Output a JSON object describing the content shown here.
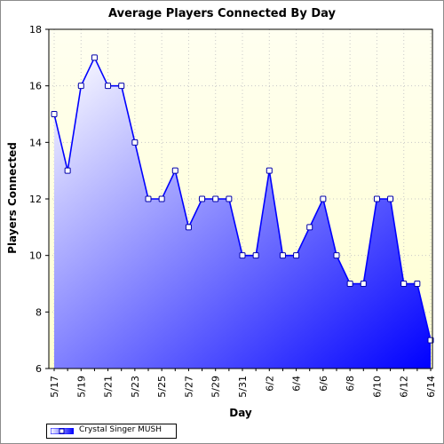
{
  "colors": {
    "plot_bg_top": "#fffff0",
    "plot_bg_bottom": "#ffffd0",
    "area_light": "#ffffff",
    "area_dark": "#0000ff",
    "line": "#0000ff",
    "grid": "#c8c8c8"
  },
  "chart_data": {
    "type": "area",
    "title": "Average Players Connected By Day",
    "xlabel": "Day",
    "ylabel": "Players Connected",
    "ylim": [
      6,
      18
    ],
    "yticks": [
      6,
      8,
      10,
      12,
      14,
      16,
      18
    ],
    "grid": true,
    "legend_position": "bottom-left",
    "x": [
      "5/17",
      "5/18",
      "5/19",
      "5/20",
      "5/21",
      "5/22",
      "5/23",
      "5/24",
      "5/25",
      "5/26",
      "5/27",
      "5/28",
      "5/29",
      "5/30",
      "5/31",
      "6/1",
      "6/2",
      "6/3",
      "6/4",
      "6/5",
      "6/6",
      "6/7",
      "6/8",
      "6/9",
      "6/10",
      "6/11",
      "6/12",
      "6/13",
      "6/14"
    ],
    "xtick_labels": [
      "5/17",
      "5/19",
      "5/21",
      "5/23",
      "5/25",
      "5/27",
      "5/29",
      "5/31",
      "6/2",
      "6/4",
      "6/6",
      "6/8",
      "6/10",
      "6/12",
      "6/14"
    ],
    "series": [
      {
        "name": "Crystal Singer MUSH",
        "values": [
          15,
          13,
          16,
          17,
          16,
          16,
          14,
          12,
          12,
          13,
          11,
          12,
          12,
          12,
          10,
          10,
          13,
          10,
          10,
          11,
          12,
          10,
          9,
          9,
          12,
          12,
          9,
          9,
          7
        ]
      }
    ]
  }
}
